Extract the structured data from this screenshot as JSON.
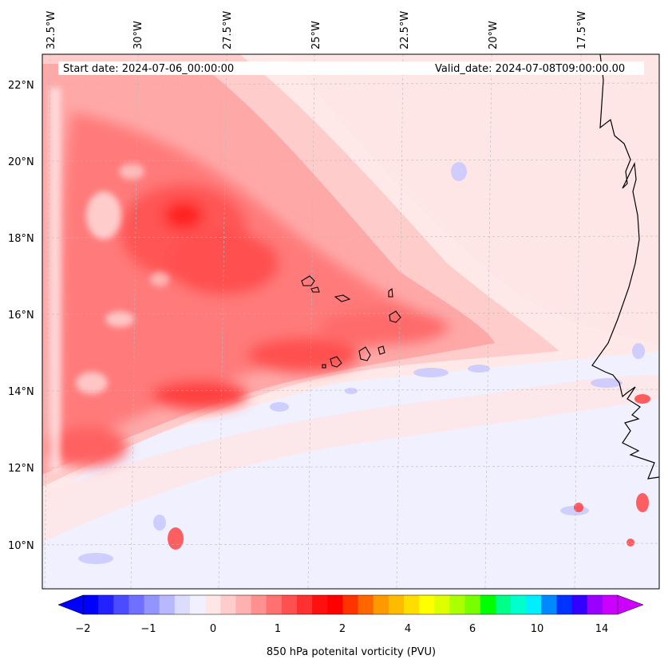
{
  "map": {
    "start_date_text": "Start date: 2024-07-06_00:00:00",
    "valid_date_text": "Valid_date: 2024-07-08T09:00:00.00",
    "lon_labels": [
      "32.5°W",
      "30°W",
      "27.5°W",
      "25°W",
      "22.5°W",
      "20°W",
      "17.5°W"
    ],
    "lat_labels": [
      "22°N",
      "20°N",
      "18°N",
      "16°N",
      "14°N",
      "12°N",
      "10°N"
    ],
    "colors": {
      "frame": "#000000",
      "coastline": "#000000",
      "gridline": "#bbbbbb"
    }
  },
  "colorbar": {
    "label": "850 hPa potenital vorticity (PVU)",
    "ticks": [
      "−2",
      "−1",
      "0",
      "1",
      "2",
      "4",
      "6",
      "10",
      "14"
    ],
    "colors": [
      "#0000ff",
      "#2222ff",
      "#4b4bff",
      "#7070ff",
      "#9494ff",
      "#b8b8ff",
      "#dcdcff",
      "#f0f0ff",
      "#ffe6e6",
      "#ffcccc",
      "#ffb0b0",
      "#ff9090",
      "#ff7070",
      "#ff5050",
      "#ff3030",
      "#ff1010",
      "#ff0000",
      "#ff3300",
      "#ff6600",
      "#ff9900",
      "#ffbb00",
      "#ffdd00",
      "#ffff00",
      "#ddff00",
      "#aaff00",
      "#77ff00",
      "#00ff00",
      "#00ff88",
      "#00ffcc",
      "#00eeff",
      "#0088ff",
      "#0033ff",
      "#3300ff",
      "#9900ff",
      "#cc00ff"
    ]
  }
}
